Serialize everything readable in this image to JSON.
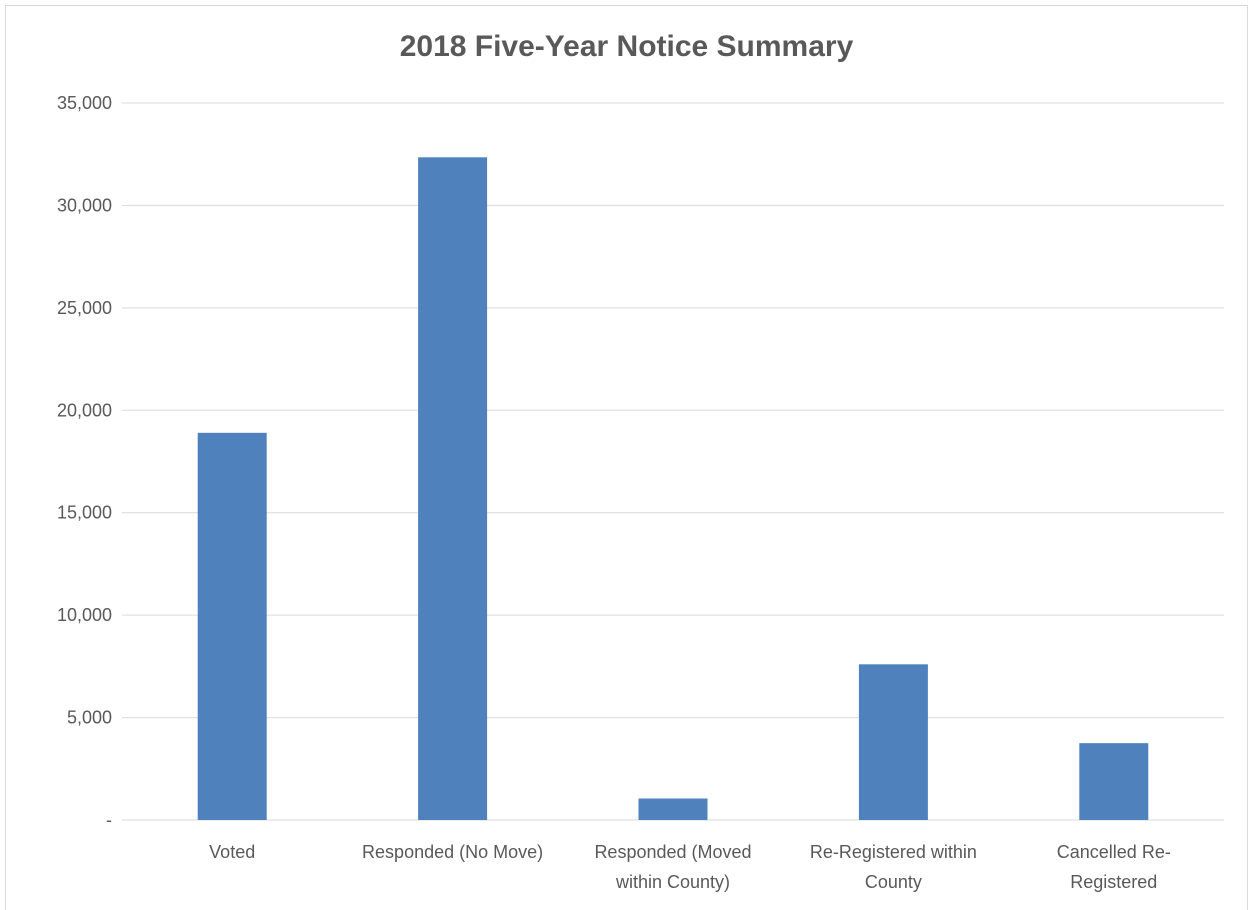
{
  "chart_data": {
    "type": "bar",
    "title": "2018 Five-Year Notice Summary",
    "categories": [
      [
        "Voted"
      ],
      [
        "Responded (No Move)"
      ],
      [
        "Responded (Moved",
        "within County)"
      ],
      [
        "Re-Registered within",
        "County"
      ],
      [
        "Cancelled Re-",
        "Registered"
      ]
    ],
    "values": [
      18900,
      32350,
      1050,
      7600,
      3750
    ],
    "ylim": [
      0,
      35000
    ],
    "yticks": [
      0,
      5000,
      10000,
      15000,
      20000,
      25000,
      30000,
      35000
    ],
    "ytick_labels": [
      "-",
      "5,000",
      "10,000",
      "15,000",
      "20,000",
      "25,000",
      "30,000",
      "35,000"
    ],
    "grid": true,
    "legend": "none",
    "bar_color": "#4f81bd",
    "grid_color": "#d9d9d9"
  }
}
